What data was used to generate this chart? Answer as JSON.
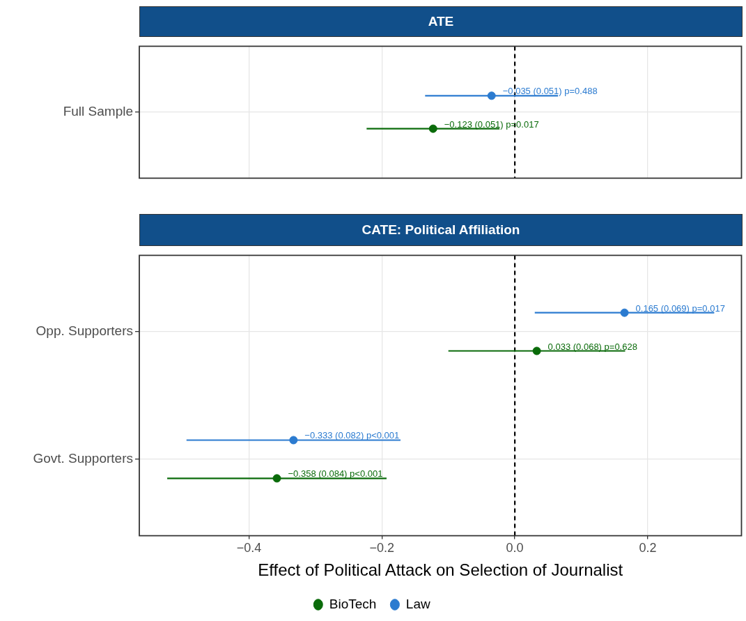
{
  "chart_data": [
    {
      "type": "scatter",
      "title": "ATE",
      "orientation": "horizontal",
      "categories": [
        "Full Sample"
      ],
      "series": [
        {
          "color": "#2b7bd0",
          "values": [
            -0.035
          ],
          "errors": [
            0.1
          ],
          "value_labels": [
            "−0.035 (0.051) p=0.488"
          ]
        },
        {
          "color": "#0a6b0a",
          "values": [
            -0.123
          ],
          "errors": [
            0.1
          ],
          "value_labels": [
            "−0.123 (0.051) p=0.017"
          ]
        }
      ],
      "xlim": [
        -0.565,
        0.341
      ],
      "xticks": [
        -0.4,
        -0.2,
        0.0,
        0.2
      ],
      "tick_labels": "y",
      "grid": true,
      "marker": "circle",
      "ref_lines": [
        {
          "axis": "x",
          "value": 0,
          "color": "#000000",
          "line_style": "dashed"
        }
      ]
    },
    {
      "type": "scatter",
      "title": "CATE: Political Affiliation",
      "orientation": "horizontal",
      "categories": [
        "Opp. Supporters",
        "Govt. Supporters"
      ],
      "series": [
        {
          "name": "Law",
          "color": "#2b7bd0",
          "values": [
            0.165,
            -0.333
          ],
          "errors": [
            0.135,
            0.161
          ],
          "value_labels": [
            "0.165 (0.069) p=0.017",
            "−0.333 (0.082) p<0.001"
          ]
        },
        {
          "name": "BioTech",
          "color": "#0a6b0a",
          "values": [
            0.033,
            -0.358
          ],
          "errors": [
            0.133,
            0.165
          ],
          "value_labels": [
            "0.033 (0.068) p=0.628",
            "−0.358 (0.084) p<0.001"
          ]
        }
      ],
      "xlim": [
        -0.565,
        0.341
      ],
      "xticks": [
        {
          "value": -0.4,
          "label": "−0.4"
        },
        {
          "value": -0.2,
          "label": "−0.2"
        },
        {
          "value": 0.0,
          "label": "0.0"
        },
        {
          "value": 0.2,
          "label": "0.2"
        }
      ],
      "xlabel": "Effect of Political Attack on Selection of Journalist",
      "grid": true,
      "marker": "circle",
      "legend": "bottom",
      "ref_lines": [
        {
          "axis": "x",
          "value": 0,
          "color": "#000000",
          "line_style": "dashed"
        }
      ]
    }
  ]
}
